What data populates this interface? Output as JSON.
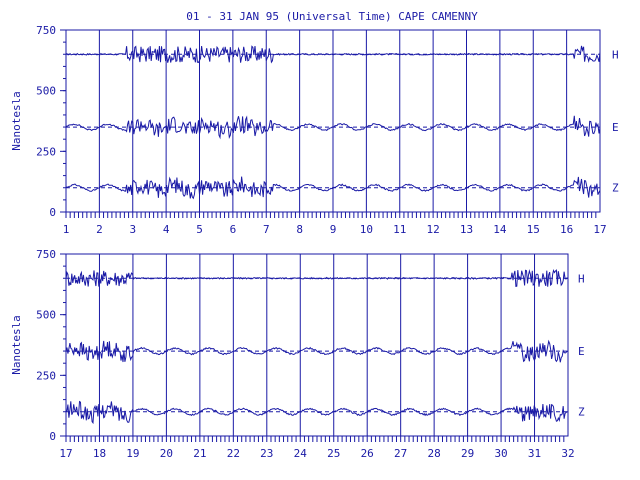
{
  "colors": {
    "ink": "#1a1aa6",
    "background": "#ffffff"
  },
  "title": "01 - 31 JAN 95 (Universal Time) CAPE CAMENNY",
  "chart_data": [
    {
      "type": "line",
      "ylabel": "Nanotesla",
      "ylim": [
        0,
        750
      ],
      "yticks": [
        "0",
        "250",
        "500",
        "750"
      ],
      "xlim": [
        1,
        17
      ],
      "xticks": [
        "1",
        "2",
        "3",
        "4",
        "5",
        "6",
        "7",
        "8",
        "9",
        "10",
        "11",
        "12",
        "13",
        "14",
        "15",
        "16",
        "17"
      ],
      "series": [
        {
          "name": "H",
          "baseline": 650
        },
        {
          "name": "E",
          "baseline": 350
        },
        {
          "name": "Z",
          "baseline": 100
        }
      ]
    },
    {
      "type": "line",
      "ylabel": "Nanotesla",
      "ylim": [
        0,
        750
      ],
      "yticks": [
        "0",
        "250",
        "500",
        "750"
      ],
      "xlim": [
        17,
        32
      ],
      "xticks": [
        "17",
        "18",
        "19",
        "20",
        "21",
        "22",
        "23",
        "24",
        "25",
        "26",
        "27",
        "28",
        "29",
        "30",
        "31",
        "32"
      ],
      "series": [
        {
          "name": "H",
          "baseline": 650
        },
        {
          "name": "E",
          "baseline": 350
        },
        {
          "name": "Z",
          "baseline": 100
        }
      ]
    }
  ]
}
